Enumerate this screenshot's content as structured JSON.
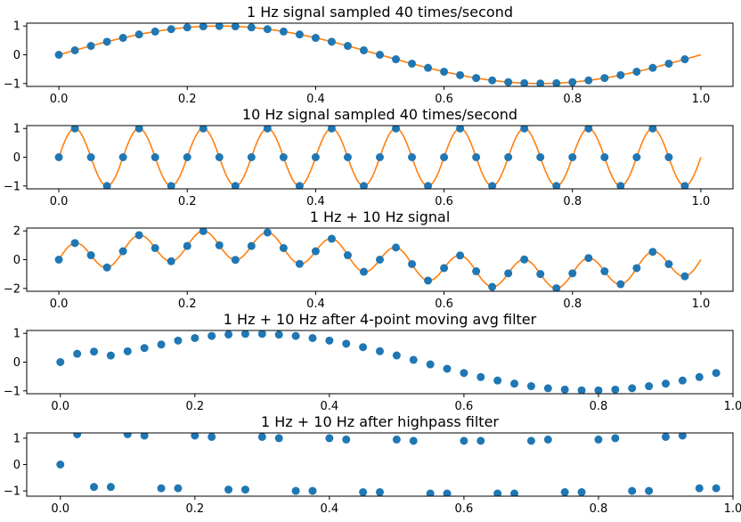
{
  "chart_data": [
    {
      "type": "scatter",
      "title": "1 Hz signal sampled 40 times/second",
      "xlabel": "",
      "ylabel": "",
      "xlim": [
        -0.05,
        1.05
      ],
      "ylim": [
        -1.1,
        1.1
      ],
      "xticks": [
        0.0,
        0.2,
        0.4,
        0.6,
        0.8,
        1.0
      ],
      "xtick_labels": [
        "0.0",
        "0.2",
        "0.4",
        "0.6",
        "0.8",
        "1.0"
      ],
      "yticks": [
        1,
        0,
        -1
      ],
      "ytick_labels": [
        "1",
        "0",
        "−1"
      ],
      "series": [
        {
          "kind": "scatter",
          "color": "#1f77b4",
          "x_start": 0.0,
          "x_step": 0.025,
          "count": 40,
          "values": [
            0.0,
            0.156,
            0.309,
            0.454,
            0.588,
            0.707,
            0.809,
            0.891,
            0.951,
            0.988,
            1.0,
            0.988,
            0.951,
            0.891,
            0.809,
            0.707,
            0.588,
            0.454,
            0.309,
            0.156,
            0.0,
            -0.156,
            -0.309,
            -0.454,
            -0.588,
            -0.707,
            -0.809,
            -0.891,
            -0.951,
            -0.988,
            -1.0,
            -0.988,
            -0.951,
            -0.891,
            -0.809,
            -0.707,
            -0.588,
            -0.454,
            -0.309,
            -0.156
          ]
        },
        {
          "kind": "line",
          "color": "#ff7f0e",
          "function": "sin(2*pi*1*x)",
          "x_range": [
            0,
            1
          ]
        }
      ]
    },
    {
      "type": "scatter",
      "title": "10 Hz signal sampled 40 times/second",
      "xlabel": "",
      "ylabel": "",
      "xlim": [
        -0.05,
        1.05
      ],
      "ylim": [
        -1.1,
        1.1
      ],
      "xticks": [
        0.0,
        0.2,
        0.4,
        0.6,
        0.8,
        1.0
      ],
      "xtick_labels": [
        "0.0",
        "0.2",
        "0.4",
        "0.6",
        "0.8",
        "1.0"
      ],
      "yticks": [
        1,
        0,
        -1
      ],
      "ytick_labels": [
        "1",
        "0",
        "−1"
      ],
      "series": [
        {
          "kind": "scatter",
          "color": "#1f77b4",
          "x_start": 0.0,
          "x_step": 0.025,
          "count": 40,
          "values": [
            0,
            1,
            0,
            -1,
            0,
            1,
            0,
            -1,
            0,
            1,
            0,
            -1,
            0,
            1,
            0,
            -1,
            0,
            1,
            0,
            -1,
            0,
            1,
            0,
            -1,
            0,
            1,
            0,
            -1,
            0,
            1,
            0,
            -1,
            0,
            1,
            0,
            -1,
            0,
            1,
            0,
            -1
          ]
        },
        {
          "kind": "line",
          "color": "#ff7f0e",
          "function": "sin(2*pi*10*x)",
          "x_range": [
            0,
            1
          ]
        }
      ]
    },
    {
      "type": "scatter",
      "title": "1 Hz + 10 Hz signal",
      "xlabel": "",
      "ylabel": "",
      "xlim": [
        -0.05,
        1.05
      ],
      "ylim": [
        -2.2,
        2.2
      ],
      "xticks": [
        0.0,
        0.2,
        0.4,
        0.6,
        0.8,
        1.0
      ],
      "xtick_labels": [
        "0.0",
        "0.2",
        "0.4",
        "0.6",
        "0.8",
        "1.0"
      ],
      "yticks": [
        2,
        0,
        -2
      ],
      "ytick_labels": [
        "2",
        "0",
        "−2"
      ],
      "series": [
        {
          "kind": "scatter",
          "color": "#1f77b4",
          "x_start": 0.0,
          "x_step": 0.025,
          "count": 40,
          "values": [
            0.0,
            1.156,
            0.309,
            -0.546,
            0.588,
            1.707,
            0.809,
            -0.109,
            0.951,
            1.988,
            1.0,
            -0.012,
            0.951,
            1.891,
            0.809,
            -0.293,
            0.588,
            1.454,
            0.309,
            -0.844,
            0.0,
            0.844,
            -0.309,
            -1.454,
            -0.588,
            0.293,
            -0.809,
            -1.891,
            -0.951,
            0.012,
            -1.0,
            -1.988,
            -0.951,
            0.109,
            -0.809,
            -1.707,
            -0.588,
            0.546,
            -0.309,
            -1.156
          ]
        },
        {
          "kind": "line",
          "color": "#ff7f0e",
          "function": "sin(2*pi*1*x) + sin(2*pi*10*x)",
          "x_range": [
            0,
            1
          ]
        }
      ]
    },
    {
      "type": "scatter",
      "title": "1 Hz + 10 Hz after 4-point moving avg filter",
      "xlabel": "",
      "ylabel": "",
      "xlim": [
        -0.05,
        1.0
      ],
      "ylim": [
        -1.1,
        1.1
      ],
      "xticks": [
        0.0,
        0.2,
        0.4,
        0.6,
        0.8,
        1.0
      ],
      "xtick_labels": [
        "0.0",
        "0.2",
        "0.4",
        "0.6",
        "0.8",
        "1.0"
      ],
      "yticks": [
        1,
        0,
        -1
      ],
      "ytick_labels": [
        "1",
        "0",
        "−1"
      ],
      "series": [
        {
          "kind": "scatter",
          "color": "#1f77b4",
          "x_start": 0.0,
          "x_step": 0.025,
          "count": 40,
          "values": [
            0.0,
            0.289,
            0.366,
            0.23,
            0.377,
            0.49,
            0.61,
            0.749,
            0.837,
            0.911,
            0.961,
            0.982,
            0.982,
            0.955,
            0.91,
            0.837,
            0.749,
            0.64,
            0.52,
            0.379,
            0.232,
            0.078,
            -0.078,
            -0.232,
            -0.379,
            -0.52,
            -0.64,
            -0.749,
            -0.837,
            -0.91,
            -0.955,
            -0.982,
            -0.982,
            -0.955,
            -0.91,
            -0.837,
            -0.749,
            -0.64,
            -0.52,
            -0.379
          ]
        }
      ]
    },
    {
      "type": "scatter",
      "title": "1 Hz + 10 Hz after highpass filter",
      "xlabel": "",
      "ylabel": "",
      "xlim": [
        -0.05,
        1.0
      ],
      "ylim": [
        -1.2,
        1.2
      ],
      "xticks": [
        0.0,
        0.2,
        0.4,
        0.6,
        0.8,
        1.0
      ],
      "xtick_labels": [
        "0.0",
        "0.2",
        "0.4",
        "0.6",
        "0.8",
        "1.0"
      ],
      "yticks": [
        1,
        0,
        -1
      ],
      "ytick_labels": [
        "1",
        "0",
        "−1"
      ],
      "series": [
        {
          "kind": "scatter",
          "color": "#1f77b4",
          "x_start": 0.0,
          "x_step": 0.025,
          "count": 40,
          "values": [
            0.0,
            1.15,
            -0.85,
            -0.85,
            1.15,
            1.1,
            -0.9,
            -0.9,
            1.1,
            1.05,
            -0.95,
            -0.95,
            1.05,
            1.0,
            -1.0,
            -1.0,
            1.0,
            0.95,
            -1.05,
            -1.05,
            0.95,
            0.9,
            -1.1,
            -1.1,
            0.9,
            0.9,
            -1.1,
            -1.1,
            0.9,
            0.95,
            -1.05,
            -1.05,
            0.95,
            1.0,
            -1.0,
            -1.0,
            1.05,
            1.1,
            -0.9,
            -0.9
          ]
        }
      ]
    }
  ]
}
